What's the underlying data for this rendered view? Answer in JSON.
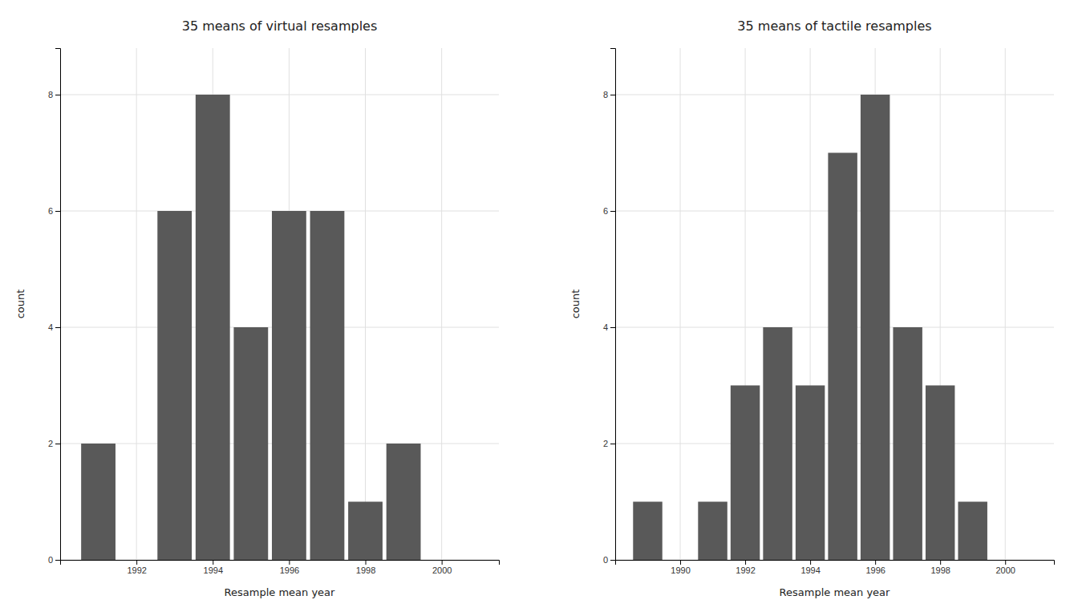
{
  "chart_data": [
    {
      "type": "bar",
      "title": "35 means of virtual resamples",
      "xlabel": "Resample mean year",
      "ylabel": "count",
      "x": [
        1991,
        1993,
        1994,
        1995,
        1996,
        1997,
        1998,
        1999
      ],
      "values": [
        2,
        6,
        8,
        4,
        6,
        6,
        1,
        2
      ],
      "color": "#595959",
      "xlim": [
        1990.0,
        2001.5
      ],
      "xticks": [
        1992,
        1994,
        1996,
        1998,
        2000
      ],
      "ylim": [
        0,
        8.8
      ],
      "yticks": [
        0,
        2,
        4,
        6,
        8
      ],
      "grid": true
    },
    {
      "type": "bar",
      "title": "35 means of tactile resamples",
      "xlabel": "Resample mean year",
      "ylabel": "count",
      "x": [
        1989,
        1991,
        1992,
        1993,
        1994,
        1995,
        1996,
        1997,
        1998,
        1999
      ],
      "values": [
        1,
        1,
        3,
        4,
        3,
        7,
        8,
        4,
        3,
        1
      ],
      "color": "#595959",
      "xlim": [
        1988.0,
        2001.5
      ],
      "xticks": [
        1990,
        1992,
        1994,
        1996,
        1998,
        2000
      ],
      "ylim": [
        0,
        8.8
      ],
      "yticks": [
        0,
        2,
        4,
        6,
        8
      ],
      "grid": true
    }
  ]
}
